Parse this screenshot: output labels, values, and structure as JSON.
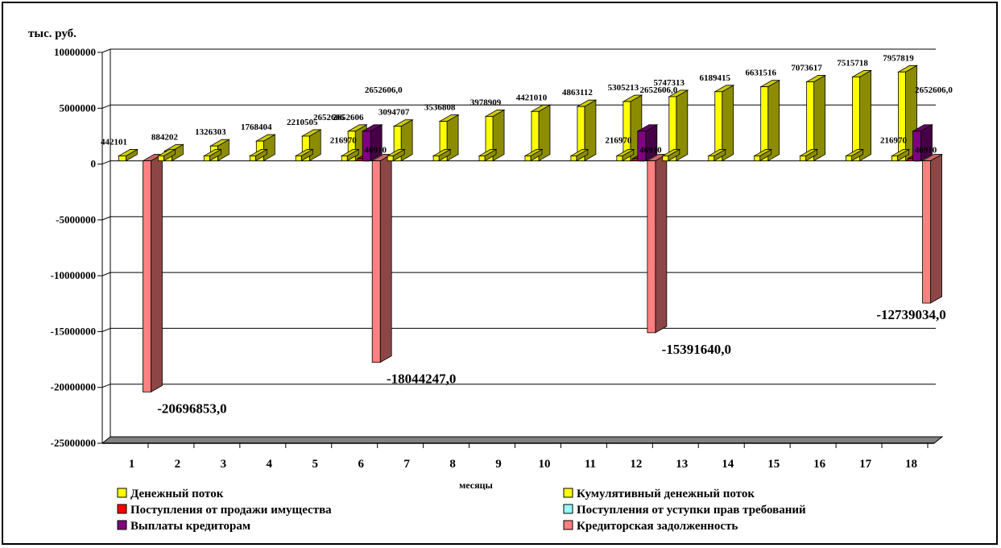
{
  "chart_data": {
    "type": "bar",
    "ylabel": "тыс. руб.",
    "xlabel": "месяцы",
    "ylim": [
      -25000000,
      10000000
    ],
    "yticks": [
      10000000,
      5000000,
      0,
      -5000000,
      -10000000,
      -15000000,
      -20000000,
      -25000000
    ],
    "ytick_labels": [
      "10000000",
      "5000000",
      "0",
      "-5000000",
      "-10000000",
      "-15000000",
      "-20000000",
      "-25000000"
    ],
    "categories": [
      "1",
      "2",
      "3",
      "4",
      "5",
      "6",
      "7",
      "8",
      "9",
      "10",
      "11",
      "12",
      "13",
      "14",
      "15",
      "16",
      "17",
      "18"
    ],
    "legend_position": "bottom",
    "series": [
      {
        "name": "Денежный поток",
        "color": "#FFFF00",
        "values": [
          442101,
          442101,
          442101,
          442101,
          442101,
          442101,
          442101,
          442101,
          442101,
          442101,
          442101,
          442101,
          442101,
          442101,
          442101,
          442101,
          442101,
          442101
        ]
      },
      {
        "name": "Кумулятивный денежный поток",
        "color": "#FFFF00",
        "values": [
          442101,
          884202,
          1326303,
          1768404,
          2210505,
          2652606,
          3094707,
          3536808,
          3978909,
          4421010,
          4863112,
          5305213,
          5747313,
          6189415,
          6631516,
          7073617,
          7515718,
          7957819
        ],
        "labels": [
          "442101",
          "884202",
          "1326303",
          "1768404",
          "2210505",
          "2652606",
          "3094707",
          "3536808",
          "3978909",
          "4421010",
          "4863112",
          "5305213",
          "5747313",
          "6189415",
          "6631516",
          "7073617",
          "7515718",
          "7957819"
        ]
      },
      {
        "name": "Поступления от продажи имущества",
        "color": "#FF0000",
        "values": [
          null,
          null,
          null,
          null,
          null,
          216970,
          null,
          null,
          null,
          null,
          null,
          216970,
          null,
          null,
          null,
          null,
          null,
          216970
        ],
        "labels": [
          null,
          null,
          null,
          null,
          null,
          "216970",
          null,
          null,
          null,
          null,
          null,
          "216970",
          null,
          null,
          null,
          null,
          null,
          "216970"
        ]
      },
      {
        "name": "Поступления от уступки прав требований",
        "color": "#99FFFF",
        "values": [
          null,
          null,
          null,
          null,
          null,
          46910,
          null,
          null,
          null,
          null,
          null,
          46910,
          null,
          null,
          null,
          null,
          null,
          46910
        ],
        "labels": [
          null,
          null,
          null,
          null,
          null,
          "46910",
          null,
          null,
          null,
          null,
          null,
          "46910",
          null,
          null,
          null,
          null,
          null,
          "46910"
        ]
      },
      {
        "name": "Выплаты кредиторам",
        "color": "#800080",
        "values": [
          null,
          null,
          null,
          null,
          null,
          2652606,
          null,
          null,
          null,
          null,
          null,
          2652606,
          null,
          null,
          null,
          null,
          null,
          2652606
        ],
        "labels": [
          null,
          null,
          null,
          null,
          null,
          "2652606,0",
          null,
          null,
          null,
          null,
          null,
          "2652606,0",
          null,
          null,
          null,
          null,
          null,
          "2652606,0"
        ]
      },
      {
        "name": "Кредиторская задолженность",
        "color": "#FF8080",
        "values": [
          -20696853,
          null,
          null,
          null,
          null,
          -18044247,
          null,
          null,
          null,
          null,
          null,
          -15391640,
          null,
          null,
          null,
          null,
          null,
          -12739034
        ],
        "labels": [
          "-20696853,0",
          null,
          null,
          null,
          null,
          "-18044247,0",
          null,
          null,
          null,
          null,
          null,
          "-15391640,0",
          null,
          null,
          null,
          null,
          null,
          "-12739034,0"
        ]
      }
    ],
    "extra_labels": [
      {
        "category": "6",
        "text": "2652606"
      }
    ]
  }
}
